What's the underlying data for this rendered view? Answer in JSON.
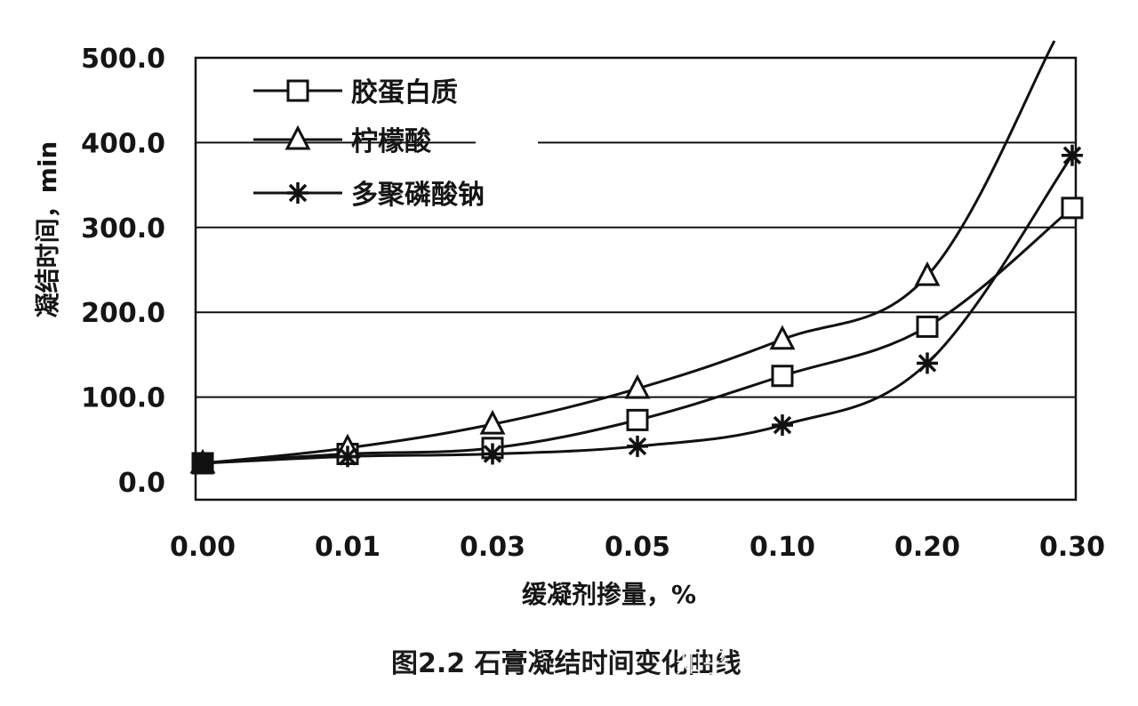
{
  "chart_data": {
    "type": "line",
    "xlabel": "缓凝剂掺量，%",
    "ylabel": "凝结时间，min",
    "categories": [
      "0.00",
      "0.01",
      "0.03",
      "0.05",
      "0.10",
      "0.20",
      "0.30"
    ],
    "yticks": [
      "0.0",
      "100.0",
      "200.0",
      "300.0",
      "400.0",
      "500.0"
    ],
    "ylim": [
      0,
      500
    ],
    "grid": "horizontal",
    "legend_position": "top-left",
    "series": [
      {
        "name": "胶蛋白质",
        "marker": "square",
        "values": [
          22,
          33,
          40,
          73,
          125,
          183,
          323
        ]
      },
      {
        "name": "柠檬酸",
        "marker": "triangle",
        "values": [
          22,
          40,
          68,
          110,
          168,
          243,
          520
        ]
      },
      {
        "name": "多聚磷酸钠",
        "marker": "star",
        "values": [
          22,
          30,
          33,
          42,
          67,
          140,
          385
        ]
      }
    ]
  },
  "caption": {
    "title": "图2.2 石膏凝结时间变化曲线",
    "watermark": "知乎 @欣格瑞（山东）环..."
  }
}
